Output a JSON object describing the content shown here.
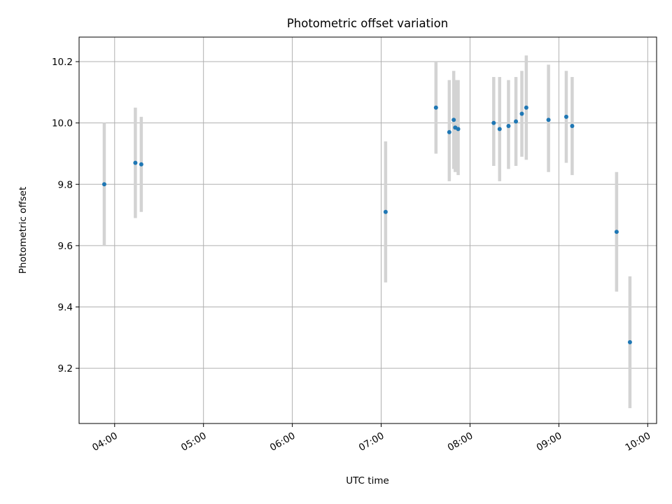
{
  "chart_data": {
    "type": "scatter",
    "title": "Photometric offset variation",
    "xlabel": "UTC time",
    "ylabel": "Photometric offset",
    "xlim": [
      "03:36",
      "10:06"
    ],
    "ylim": [
      9.02,
      10.28
    ],
    "x_ticks": [
      "04:00",
      "05:00",
      "06:00",
      "07:00",
      "08:00",
      "09:00",
      "10:00"
    ],
    "y_ticks": [
      9.2,
      9.4,
      9.6,
      9.8,
      10.0,
      10.2
    ],
    "grid": true,
    "x_tick_rotation_deg": 30,
    "point_color": "#1f77b4",
    "errorbar_color": "#d3d3d3",
    "points": [
      {
        "time": "03:53",
        "y": 9.8,
        "yerr_low": 9.6,
        "yerr_high": 10.0
      },
      {
        "time": "04:14",
        "y": 9.87,
        "yerr_low": 9.69,
        "yerr_high": 10.05
      },
      {
        "time": "04:18",
        "y": 9.865,
        "yerr_low": 9.71,
        "yerr_high": 10.02
      },
      {
        "time": "07:03",
        "y": 9.71,
        "yerr_low": 9.48,
        "yerr_high": 9.94
      },
      {
        "time": "07:37",
        "y": 10.05,
        "yerr_low": 9.9,
        "yerr_high": 10.2
      },
      {
        "time": "07:46",
        "y": 9.97,
        "yerr_low": 9.81,
        "yerr_high": 10.14
      },
      {
        "time": "07:49",
        "y": 10.01,
        "yerr_low": 9.85,
        "yerr_high": 10.17
      },
      {
        "time": "07:50",
        "y": 9.985,
        "yerr_low": 9.84,
        "yerr_high": 10.14
      },
      {
        "time": "07:52",
        "y": 9.98,
        "yerr_low": 9.83,
        "yerr_high": 10.14
      },
      {
        "time": "08:16",
        "y": 10.0,
        "yerr_low": 9.86,
        "yerr_high": 10.15
      },
      {
        "time": "08:20",
        "y": 9.98,
        "yerr_low": 9.81,
        "yerr_high": 10.15
      },
      {
        "time": "08:26",
        "y": 9.99,
        "yerr_low": 9.85,
        "yerr_high": 10.14
      },
      {
        "time": "08:31",
        "y": 10.005,
        "yerr_low": 9.86,
        "yerr_high": 10.15
      },
      {
        "time": "08:35",
        "y": 10.03,
        "yerr_low": 9.89,
        "yerr_high": 10.17
      },
      {
        "time": "08:38",
        "y": 10.05,
        "yerr_low": 9.88,
        "yerr_high": 10.22
      },
      {
        "time": "08:53",
        "y": 10.01,
        "yerr_low": 9.84,
        "yerr_high": 10.19
      },
      {
        "time": "09:05",
        "y": 10.02,
        "yerr_low": 9.87,
        "yerr_high": 10.17
      },
      {
        "time": "09:09",
        "y": 9.99,
        "yerr_low": 9.83,
        "yerr_high": 10.15
      },
      {
        "time": "09:39",
        "y": 9.645,
        "yerr_low": 9.45,
        "yerr_high": 9.84
      },
      {
        "time": "09:48",
        "y": 9.285,
        "yerr_low": 9.07,
        "yerr_high": 9.5
      }
    ]
  }
}
